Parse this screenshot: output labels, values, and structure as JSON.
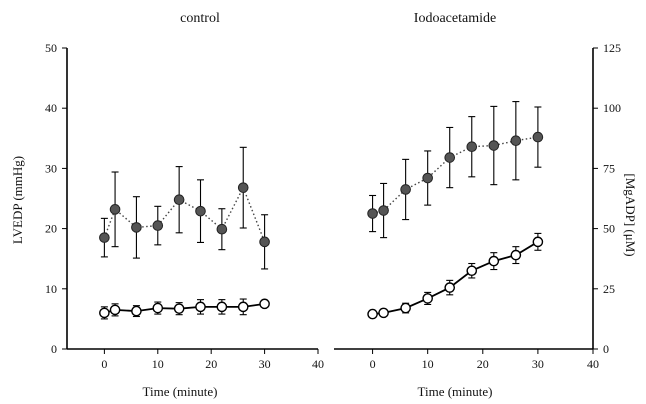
{
  "chart_data": [
    {
      "type": "line",
      "title": "control",
      "xlabel": "Time (minute)",
      "ylabel": "LVEDP (mmHg)",
      "y2label": "",
      "xlim": [
        -7,
        40
      ],
      "ylim": [
        0,
        50
      ],
      "y2lim": [
        0,
        125
      ],
      "xticks": [
        "0",
        "10",
        "20",
        "30",
        "40"
      ],
      "yticks": [
        "0",
        "10",
        "20",
        "30",
        "40",
        "50"
      ],
      "y2ticks": [],
      "series": [
        {
          "axis": "left",
          "style": "dotted-filled",
          "x": [
            0,
            2,
            6,
            10,
            14,
            18,
            22,
            26,
            30
          ],
          "y": [
            18.5,
            23.2,
            20.2,
            20.5,
            24.8,
            22.9,
            19.9,
            26.8,
            17.8
          ],
          "err": [
            3.2,
            6.2,
            5.1,
            3.2,
            5.5,
            5.2,
            3.4,
            6.7,
            4.5
          ]
        },
        {
          "axis": "left",
          "style": "solid-open",
          "x": [
            0,
            2,
            6,
            10,
            14,
            18,
            22,
            26,
            30
          ],
          "y": [
            6.0,
            6.5,
            6.3,
            6.8,
            6.7,
            7.0,
            7.0,
            7.0,
            7.5
          ],
          "err": [
            1.0,
            1.0,
            0.9,
            1.0,
            1.0,
            1.2,
            1.2,
            1.3,
            0
          ]
        }
      ]
    },
    {
      "type": "line",
      "title": "Iodoacetamide",
      "xlabel": "Time (minute)",
      "ylabel": "",
      "y2label": "[MgADP] (μM)",
      "xlim": [
        -7,
        40
      ],
      "ylim": [
        0,
        50
      ],
      "y2lim": [
        0,
        125
      ],
      "xticks": [
        "0",
        "10",
        "20",
        "30",
        "40"
      ],
      "yticks": [],
      "y2ticks": [
        "0",
        "25",
        "50",
        "75",
        "100",
        "125"
      ],
      "series": [
        {
          "axis": "left",
          "style": "dotted-filled",
          "x": [
            0,
            2,
            6,
            10,
            14,
            18,
            22,
            26,
            30
          ],
          "y": [
            22.5,
            23.0,
            26.5,
            28.4,
            31.8,
            33.6,
            33.8,
            34.6,
            35.2
          ],
          "err": [
            3.0,
            4.5,
            5.0,
            4.5,
            5.0,
            5.0,
            6.5,
            6.5,
            5.0
          ]
        },
        {
          "axis": "right",
          "style": "solid-open",
          "x": [
            0,
            2,
            6,
            10,
            14,
            18,
            22,
            26,
            30
          ],
          "y": [
            14.5,
            15.0,
            17.0,
            21.0,
            25.5,
            32.5,
            36.5,
            39.0,
            44.5
          ],
          "err": [
            0,
            0,
            2.0,
            2.5,
            3.0,
            3.0,
            3.5,
            3.5,
            3.5
          ]
        }
      ]
    }
  ]
}
